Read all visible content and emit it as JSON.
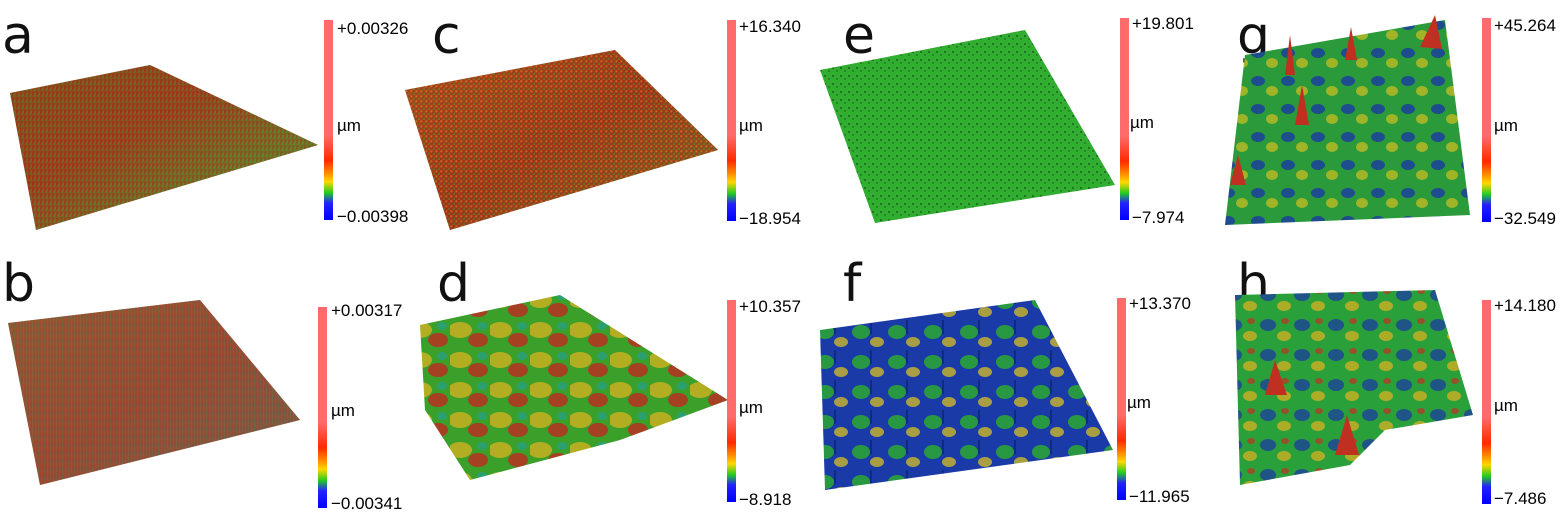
{
  "panels": [
    {
      "letter": "a",
      "max": "+0.00326",
      "unit": "µm",
      "min": "−0.00398",
      "palette": "warm-fine"
    },
    {
      "letter": "b",
      "max": "+0.00317",
      "unit": "µm",
      "min": "−0.00341",
      "palette": "warm-fine"
    },
    {
      "letter": "c",
      "max": "+16.340",
      "unit": "µm",
      "min": "−18.954",
      "palette": "warm"
    },
    {
      "letter": "d",
      "max": "+10.357",
      "unit": "µm",
      "min": "−8.918",
      "palette": "mixed"
    },
    {
      "letter": "e",
      "max": "+19.801",
      "unit": "µm",
      "min": "−7.974",
      "palette": "green"
    },
    {
      "letter": "f",
      "max": "+13.370",
      "unit": "µm",
      "min": "−11.965",
      "palette": "cool"
    },
    {
      "letter": "g",
      "max": "+45.264",
      "unit": "µm",
      "min": "−32.549",
      "palette": "cool-peaks"
    },
    {
      "letter": "h",
      "max": "+14.180",
      "unit": "µm",
      "min": "−7.486",
      "palette": "cool-peaks"
    }
  ],
  "colors": {
    "scale_top": "#ff6b6b",
    "scale_red": "#ff2a00",
    "scale_yellow": "#ffd700",
    "scale_green": "#22cc22",
    "scale_blue": "#0000ff"
  }
}
